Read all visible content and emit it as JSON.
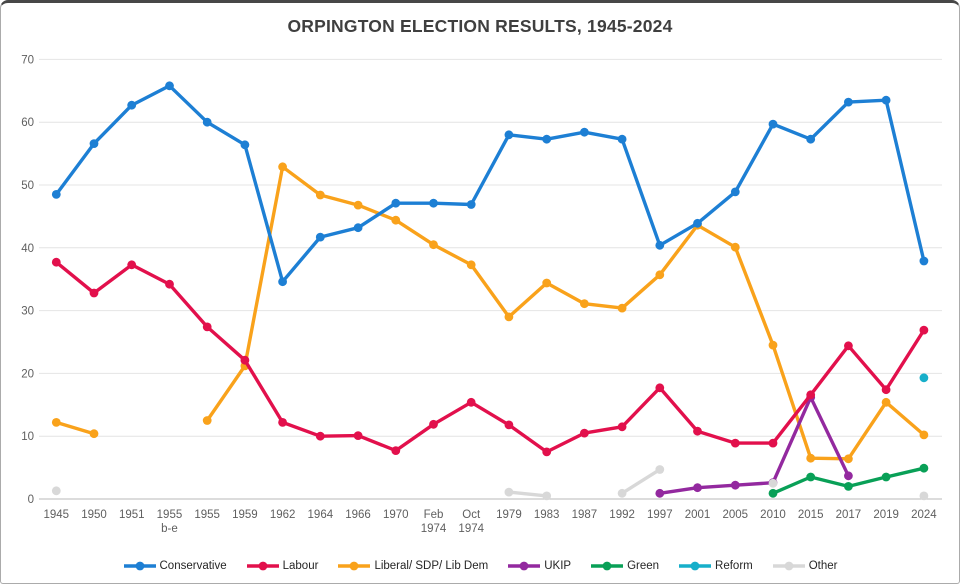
{
  "frame": {
    "background": "#ffffff",
    "border_color": "#ababab"
  },
  "colors": {
    "grid": "#e4e4e4",
    "axis_line": "#c6c6c6",
    "tick_label": "#5f5f5f",
    "title": "#3f3f3f",
    "legend_text": "#262626"
  },
  "chart_data": {
    "type": "line",
    "title": "ORPINGTON ELECTION RESULTS, 1945-2024",
    "xlabel": "",
    "ylabel": "",
    "grid": true,
    "legend_position": "bottom",
    "y_axis": {
      "min": 0,
      "max": 70,
      "step": 10,
      "ticks": [
        0,
        10,
        20,
        30,
        40,
        50,
        60,
        70
      ]
    },
    "categories": [
      "1945",
      "1950",
      "1951",
      "1955\nb-e",
      "1955",
      "1959",
      "1962",
      "1964",
      "1966",
      "1970",
      "Feb\n1974",
      "Oct\n1974",
      "1979",
      "1983",
      "1987",
      "1992",
      "1997",
      "2001",
      "2005",
      "2010",
      "2015",
      "2017",
      "2019",
      "2024"
    ],
    "series": [
      {
        "id": "conservative",
        "label": "Conservative",
        "color": "#1d7fd4",
        "z": 6,
        "values": [
          48.5,
          56.6,
          62.7,
          65.8,
          60.0,
          56.4,
          34.6,
          41.7,
          43.2,
          47.1,
          47.1,
          46.9,
          58.0,
          57.3,
          58.4,
          57.3,
          40.4,
          43.9,
          48.9,
          59.7,
          57.3,
          63.2,
          63.5,
          37.9
        ]
      },
      {
        "id": "labour",
        "label": "Labour",
        "color": "#e2104c",
        "z": 7,
        "values": [
          37.7,
          32.8,
          37.3,
          34.2,
          27.4,
          22.1,
          12.2,
          10.0,
          10.1,
          7.7,
          11.9,
          15.4,
          11.8,
          7.5,
          10.5,
          11.5,
          17.7,
          10.8,
          8.9,
          8.9,
          16.6,
          24.4,
          17.4,
          26.9
        ]
      },
      {
        "id": "liberal",
        "label": "Liberal/ SDP/ Lib Dem",
        "color": "#f9a21b",
        "z": 1,
        "values": [
          12.2,
          10.4,
          null,
          null,
          12.5,
          21.2,
          52.9,
          48.4,
          46.8,
          44.4,
          40.5,
          37.3,
          29.0,
          34.4,
          31.1,
          30.4,
          35.7,
          43.6,
          40.1,
          24.5,
          6.5,
          6.4,
          15.4,
          10.2
        ]
      },
      {
        "id": "ukip",
        "label": "UKIP",
        "color": "#93299f",
        "z": 2,
        "values": [
          null,
          null,
          null,
          null,
          null,
          null,
          null,
          null,
          null,
          null,
          null,
          null,
          null,
          null,
          null,
          null,
          0.9,
          1.8,
          2.2,
          2.6,
          16.2,
          3.7,
          null,
          null
        ]
      },
      {
        "id": "green",
        "label": "Green",
        "color": "#09a057",
        "z": 4,
        "values": [
          null,
          null,
          null,
          null,
          null,
          null,
          null,
          null,
          null,
          null,
          null,
          null,
          null,
          null,
          null,
          null,
          null,
          null,
          null,
          0.9,
          3.5,
          2.0,
          3.5,
          4.9
        ]
      },
      {
        "id": "reform",
        "label": "Reform",
        "color": "#17afca",
        "z": 5,
        "values": [
          null,
          null,
          null,
          null,
          null,
          null,
          null,
          null,
          null,
          null,
          null,
          null,
          null,
          null,
          null,
          null,
          null,
          null,
          null,
          null,
          null,
          null,
          null,
          19.3
        ]
      },
      {
        "id": "other",
        "label": "Other",
        "color": "#d8d8d8",
        "z": 3,
        "values": [
          1.3,
          null,
          null,
          null,
          null,
          null,
          null,
          null,
          null,
          null,
          null,
          null,
          1.1,
          0.5,
          null,
          0.9,
          4.7,
          null,
          null,
          2.5,
          null,
          null,
          null,
          0.5
        ]
      }
    ]
  }
}
